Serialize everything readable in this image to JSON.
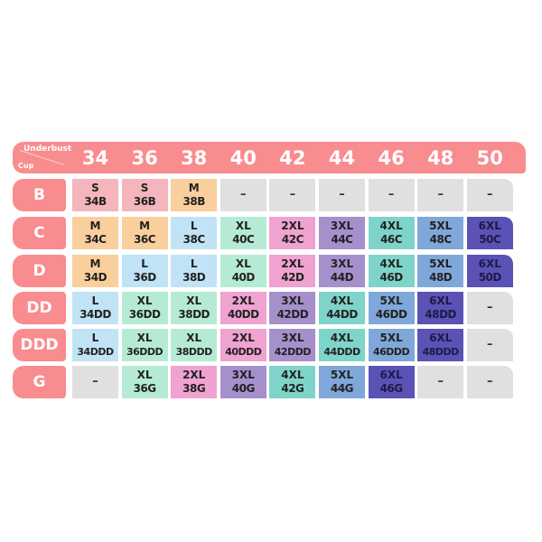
{
  "header": {
    "underbust_label": "Underbust",
    "cup_label": "Cup",
    "columns": [
      "34",
      "36",
      "38",
      "40",
      "42",
      "44",
      "46",
      "48",
      "50"
    ]
  },
  "colors": {
    "header": "#f98c8e",
    "S": "#f4b5bd",
    "M": "#f9cf9d",
    "L": "#c0e3f6",
    "XL": "#b5ebd5",
    "2XL": "#f0a2d0",
    "3XL": "#a690cc",
    "4XL": "#7fd4c9",
    "5XL": "#80a7d9",
    "6XL": "#5b52b5",
    "empty": "#e0e0e0"
  },
  "rows": [
    {
      "cup": "B",
      "cells": [
        [
          "S",
          "34B"
        ],
        [
          "S",
          "36B"
        ],
        [
          "M",
          "38B"
        ],
        [
          "–"
        ],
        [
          "–"
        ],
        [
          "–"
        ],
        [
          "–"
        ],
        [
          "–"
        ],
        [
          "–"
        ]
      ]
    },
    {
      "cup": "C",
      "cells": [
        [
          "M",
          "34C"
        ],
        [
          "M",
          "36C"
        ],
        [
          "L",
          "38C"
        ],
        [
          "XL",
          "40C"
        ],
        [
          "2XL",
          "42C"
        ],
        [
          "3XL",
          "44C"
        ],
        [
          "4XL",
          "46C"
        ],
        [
          "5XL",
          "48C"
        ],
        [
          "6XL",
          "50C"
        ]
      ]
    },
    {
      "cup": "D",
      "cells": [
        [
          "M",
          "34D"
        ],
        [
          "L",
          "36D"
        ],
        [
          "L",
          "38D"
        ],
        [
          "XL",
          "40D"
        ],
        [
          "2XL",
          "42D"
        ],
        [
          "3XL",
          "44D"
        ],
        [
          "4XL",
          "46D"
        ],
        [
          "5XL",
          "48D"
        ],
        [
          "6XL",
          "50D"
        ]
      ]
    },
    {
      "cup": "DD",
      "cells": [
        [
          "L",
          "34DD"
        ],
        [
          "XL",
          "36DD"
        ],
        [
          "XL",
          "38DD"
        ],
        [
          "2XL",
          "40DD"
        ],
        [
          "3XL",
          "42DD"
        ],
        [
          "4XL",
          "44DD"
        ],
        [
          "5XL",
          "46DD"
        ],
        [
          "6XL",
          "48DD"
        ],
        [
          "–"
        ]
      ]
    },
    {
      "cup": "DDD",
      "cells": [
        [
          "L",
          "34DDD"
        ],
        [
          "XL",
          "36DDD"
        ],
        [
          "XL",
          "38DDD"
        ],
        [
          "2XL",
          "40DDD"
        ],
        [
          "3XL",
          "42DDD"
        ],
        [
          "4XL",
          "44DDD"
        ],
        [
          "5XL",
          "46DDD"
        ],
        [
          "6XL",
          "48DDD"
        ],
        [
          "–"
        ]
      ]
    },
    {
      "cup": "G",
      "cells": [
        [
          "–"
        ],
        [
          "XL",
          "36G"
        ],
        [
          "2XL",
          "38G"
        ],
        [
          "3XL",
          "40G"
        ],
        [
          "4XL",
          "42G"
        ],
        [
          "5XL",
          "44G"
        ],
        [
          "6XL",
          "46G"
        ],
        [
          "–"
        ],
        [
          "–"
        ]
      ]
    }
  ]
}
